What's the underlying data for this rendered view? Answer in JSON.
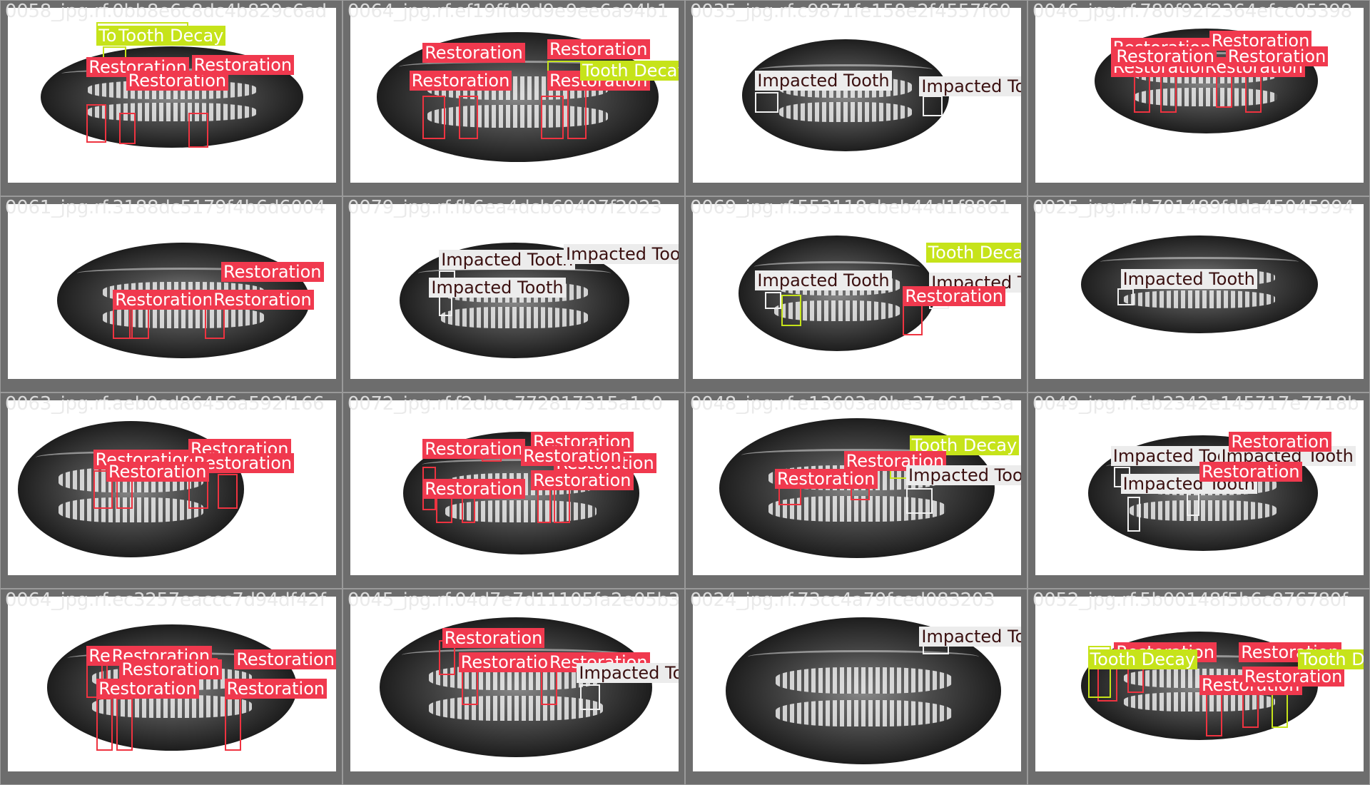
{
  "class_colors": {
    "Restoration": "#f0394e",
    "Tooth Decay": "#c6e31a",
    "Impacted Tooth": "#ececec"
  },
  "tiles": [
    {
      "caption": "0058_jpg.rf.0bb8e6c8dc4b829c6ad",
      "detections": [
        {
          "label": "Tooth Decay"
        },
        {
          "label": "To"
        },
        {
          "label": "Restoration"
        },
        {
          "label": "Restoration"
        },
        {
          "label": "Restoration"
        }
      ]
    },
    {
      "caption": "0064_jpg.rf.ef19ffd9d9e9ee6a94b1",
      "detections": [
        {
          "label": "Restoration"
        },
        {
          "label": "Restoration"
        },
        {
          "label": "Restoration"
        },
        {
          "label": "Restoration"
        },
        {
          "label": "Tooth Decay"
        }
      ]
    },
    {
      "caption": "0035_jpg.rf.c9871fe158e2f4557f60",
      "detections": [
        {
          "label": "Impacted Tooth"
        },
        {
          "label": "Impacted Tooth"
        }
      ]
    },
    {
      "caption": "0046_jpg.rf.780f92f2364efcc05398",
      "detections": [
        {
          "label": "Restoration"
        },
        {
          "label": "Restoration"
        },
        {
          "label": "Restoration"
        },
        {
          "label": "Restoration"
        },
        {
          "label": "Restoration"
        },
        {
          "label": "Restoration"
        }
      ]
    },
    {
      "caption": "0061_jpg.rf.3188dc5179f4b6d6004",
      "detections": [
        {
          "label": "Restoration"
        },
        {
          "label": "Restoration"
        },
        {
          "label": "Restoration"
        }
      ]
    },
    {
      "caption": "0079_jpg.rf.fb6ea4dcb60407f2023",
      "detections": [
        {
          "label": "Impacted Tooth"
        },
        {
          "label": "Impacted Too"
        },
        {
          "label": "Impacted Tooth"
        }
      ]
    },
    {
      "caption": "0069_jpg.rf.553118cbeb44d1f8861",
      "detections": [
        {
          "label": "Tooth Decay"
        },
        {
          "label": "Impacted Tooth"
        },
        {
          "label": "Impacted Tooth"
        },
        {
          "label": "Restoration"
        }
      ]
    },
    {
      "caption": "0025_jpg.rf.b701489fdda45045994",
      "detections": [
        {
          "label": "Impacted Tooth"
        }
      ]
    },
    {
      "caption": "0063_jpg.rf.aeb0cd86456a592f166",
      "detections": [
        {
          "label": "Restoration"
        },
        {
          "label": "Restoration"
        },
        {
          "label": "Restoration"
        },
        {
          "label": "Restoration"
        }
      ]
    },
    {
      "caption": "0072_jpg.rf.f2cbcc772817315a1c0",
      "detections": [
        {
          "label": "Restoration"
        },
        {
          "label": "Restoration"
        },
        {
          "label": "Restoration"
        },
        {
          "label": "Restoration"
        },
        {
          "label": "Restoration"
        },
        {
          "label": "Restoration"
        }
      ]
    },
    {
      "caption": "0048_jpg.rf.e13603a0be37e61c53a",
      "detections": [
        {
          "label": "Tooth Decay"
        },
        {
          "label": "Restoration"
        },
        {
          "label": "Restoration"
        },
        {
          "label": "Impacted Tooth"
        }
      ]
    },
    {
      "caption": "0049_jpg.rf.eb2342e145717e7718b",
      "detections": [
        {
          "label": "Impacted Tooth"
        },
        {
          "label": "Impacted Tooth"
        },
        {
          "label": "Impacted Tooth"
        },
        {
          "label": "Restoration"
        },
        {
          "label": "Restoration"
        }
      ]
    },
    {
      "caption": "0064_jpg.rf.ec3257eaccc7d94df42f",
      "detections": [
        {
          "label": "Restoration"
        },
        {
          "label": "Restoration"
        },
        {
          "label": "Restoration"
        },
        {
          "label": "Restoration"
        },
        {
          "label": "Restoration"
        },
        {
          "label": "Restoration"
        }
      ]
    },
    {
      "caption": "0045_jpg.rf.04d7e7d11105fa2e05b3",
      "detections": [
        {
          "label": "Restoration"
        },
        {
          "label": "Restoration"
        },
        {
          "label": "Restoration"
        },
        {
          "label": "Impacted Tooth"
        }
      ]
    },
    {
      "caption": "0024_jpg.rf.73cc4a79fced083203",
      "detections": [
        {
          "label": "Impacted Tooth"
        }
      ]
    },
    {
      "caption": "0052_jpg.rf.5b00148f5b6c876780f",
      "detections": [
        {
          "label": "Restoration"
        },
        {
          "label": "Restoration"
        },
        {
          "label": "Restoration"
        },
        {
          "label": "Restoration"
        },
        {
          "label": "Tooth Decay"
        },
        {
          "label": "Tooth Decay"
        }
      ]
    }
  ]
}
